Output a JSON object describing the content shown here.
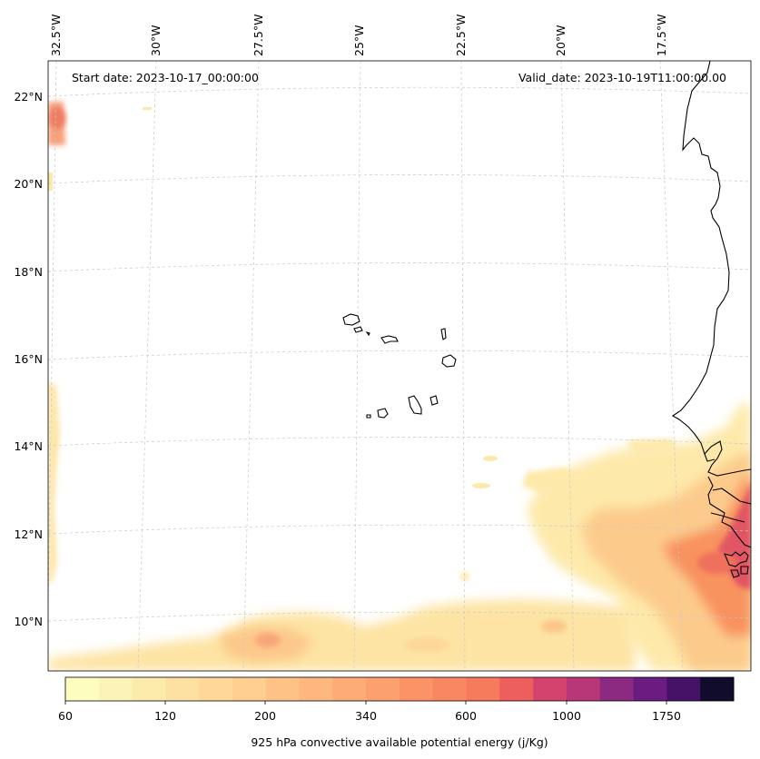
{
  "header": {
    "start_date": "Start date: 2023-10-17_00:00:00",
    "valid_date": "Valid_date: 2023-10-19T11:00:00.00"
  },
  "map": {
    "lon_labels": [
      "32.5°W",
      "30°W",
      "27.5°W",
      "25°W",
      "22.5°W",
      "20°W",
      "17.5°W"
    ],
    "lat_labels": [
      "22°N",
      "20°N",
      "18°N",
      "16°N",
      "14°N",
      "12°N",
      "10°N"
    ],
    "colors": {
      "coastline": "#000000",
      "gridline": "#c8c8c8",
      "frame": "#000000"
    }
  },
  "colorbar": {
    "label": "925 hPa convective available potential energy (j/Kg)",
    "tick_labels": [
      "60",
      "120",
      "200",
      "340",
      "600",
      "1000",
      "1750"
    ],
    "colors": [
      "#fcfdbf",
      "#fcf4b6",
      "#fdebac",
      "#fde1a2",
      "#fed799",
      "#fecd90",
      "#fec287",
      "#feb77e",
      "#fdac76",
      "#fca06e",
      "#fb9367",
      "#f98761",
      "#f57b5c",
      "#ed5f5d",
      "#d3436e",
      "#b73779",
      "#8c2981",
      "#6a1c81",
      "#461268",
      "#110c2b"
    ]
  }
}
